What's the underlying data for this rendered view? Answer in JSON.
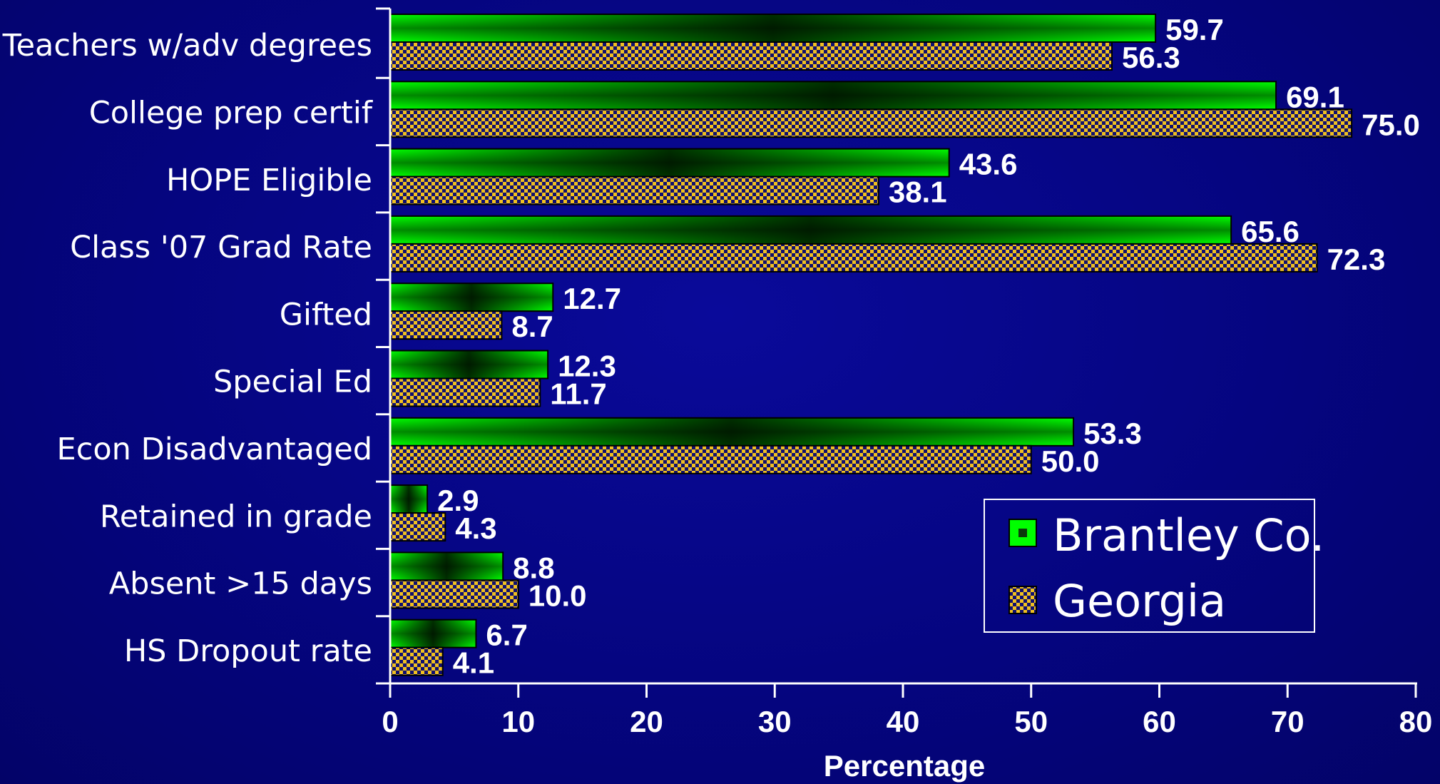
{
  "chart_data": {
    "type": "bar",
    "orientation": "horizontal",
    "categories": [
      "Teachers w/adv degrees",
      "College prep certif",
      "HOPE Eligible",
      "Class '07 Grad Rate",
      "Gifted",
      "Special Ed",
      "Econ Disadvantaged",
      "Retained in grade",
      "Absent >15 days",
      "HS Dropout rate"
    ],
    "series": [
      {
        "name": "Brantley Co.",
        "values": [
          59.7,
          69.1,
          43.6,
          65.6,
          12.7,
          12.3,
          53.3,
          2.9,
          8.8,
          6.7
        ],
        "labels": [
          "59.7",
          "69.1",
          "43.6",
          "65.6",
          "12.7",
          "12.3",
          "53.3",
          "2.9",
          "8.8",
          "6.7"
        ]
      },
      {
        "name": "Georgia",
        "values": [
          56.3,
          75.0,
          38.1,
          72.3,
          8.7,
          11.7,
          50.0,
          4.3,
          10.0,
          4.1
        ],
        "labels": [
          "56.3",
          "75.0",
          "38.1",
          "72.3",
          "8.7",
          "11.7",
          "50.0",
          "4.3",
          "10.0",
          "4.1"
        ]
      }
    ],
    "xlabel": "Percentage",
    "ylabel": "",
    "xlim": [
      0,
      80
    ],
    "xticks": [
      "0",
      "10",
      "20",
      "30",
      "40",
      "50",
      "60",
      "70",
      "80"
    ],
    "grid": false,
    "legend_position": "bottom-right",
    "colors": {
      "background": "#06068a",
      "brantley": "#00ff00",
      "brantley_dark": "#000000",
      "georgia_a": "#f0c020",
      "georgia_b": "#101070",
      "text": "#ffffff",
      "axis": "#ffffff"
    }
  }
}
